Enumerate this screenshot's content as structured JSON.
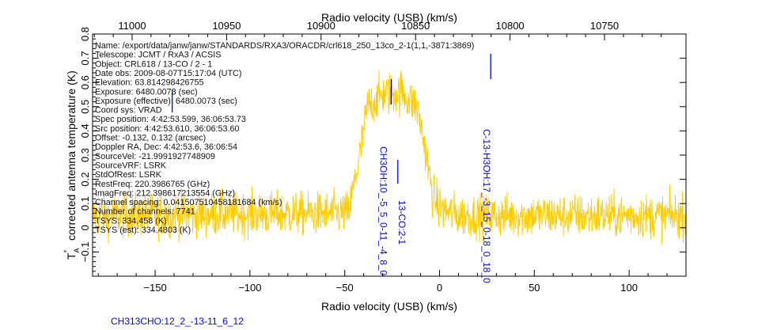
{
  "chart_data": {
    "type": "line",
    "title": "",
    "xlabel": "Radio velocity (USB) (km/s)",
    "x2label": "Radio velocity (USB) (km/s)",
    "ylabel": "corrected antenna temperature (K)",
    "ylabel_symbol": "T",
    "ylabel_sub": "A",
    "ylabel_sup": "*",
    "xlim": [
      -183,
      130
    ],
    "ylim": [
      -0.2,
      0.8
    ],
    "x_ticks": [
      -150,
      -100,
      -50,
      0,
      50,
      100
    ],
    "x_tick_labels": [
      "−150",
      "−100",
      "−50",
      "0",
      "50",
      "100"
    ],
    "x2_ticks": [
      11000,
      10950,
      10900,
      10850,
      10800,
      10750
    ],
    "x2_tick_labels": [
      "11000",
      "10950",
      "10900",
      "10850",
      "10800",
      "10750"
    ],
    "y_ticks": [
      -0.1,
      0,
      0.1,
      0.2,
      0.3,
      0.4,
      0.5,
      0.6,
      0.7,
      0.8
    ],
    "y_tick_labels": [
      "−0.1",
      "0",
      "0.1",
      "0.2",
      "0.3",
      "0.4",
      "0.5",
      "0.6",
      "0.7",
      "0.8"
    ],
    "series": [
      {
        "name": "spectrum",
        "color": "#ffcc00",
        "envelope_x": [
          -183,
          -48,
          -42,
          -38,
          -30,
          -20,
          -12,
          -8,
          -4,
          0,
          10,
          130
        ],
        "envelope_y": [
          0.05,
          0.06,
          0.3,
          0.5,
          0.55,
          0.56,
          0.5,
          0.35,
          0.15,
          0.08,
          0.05,
          0.05
        ],
        "noise_rms": 0.045
      }
    ],
    "line_markers": [
      {
        "label": "CH313CHO:12_2_-13-11_6_12",
        "velocity": -141,
        "color": "#0000ff"
      },
      {
        "label": "CH3OH:10_-5_5_0-11_-4_8_0",
        "velocity": -25.5,
        "color": "#0000ff"
      },
      {
        "label": "13-CO:2-1",
        "velocity": -22,
        "color": "#0000ff"
      },
      {
        "label": "C-13-H3OH:17_-3_15_0-18_0_18_0",
        "velocity": 27,
        "color": "#0000ff"
      }
    ],
    "grid": false
  },
  "info": [
    "Name: /export/data/janw/janw/STANDARDS/RXA3/ORACDR/crl618_250_13co_2-1(1,1,-3871:3869)",
    "Telescope: JCMT / RxA3 / ACSIS",
    "Object: CRL618 / 13-CO / 2  - 1",
    "Date obs: 2009-08-07T15:17:04 (UTC)",
    "Elevation: 63.814298426755",
    "Exposure: 6480.0073 (sec)",
    "Exposure (effective): 6480.0073 (sec)",
    "Coord sys: VRAD",
    "Spec position: 4:42:53.599, 36:06:53.73",
    "Src position: 4:42:53.610, 36:06:53.60",
    "Offset: -0.132, 0.132 (arcsec)",
    "Doppler RA, Dec: 4:42:53.6, 36:06:54",
    "SourceVel: -21.9991927748909",
    "SourceVRF: LSRK",
    "StdOfRest: LSRK",
    "RestFreq: 220.3986765 (GHz)",
    "ImagFreq: 212.398617213554 (GHz)",
    "Channel spacing: 0.0415075104581816­84 (km/s)",
    "Number of channels: 7741",
    "TSYS: 334.458 (K)",
    "TSYS (est): 334.4803 (K)"
  ]
}
